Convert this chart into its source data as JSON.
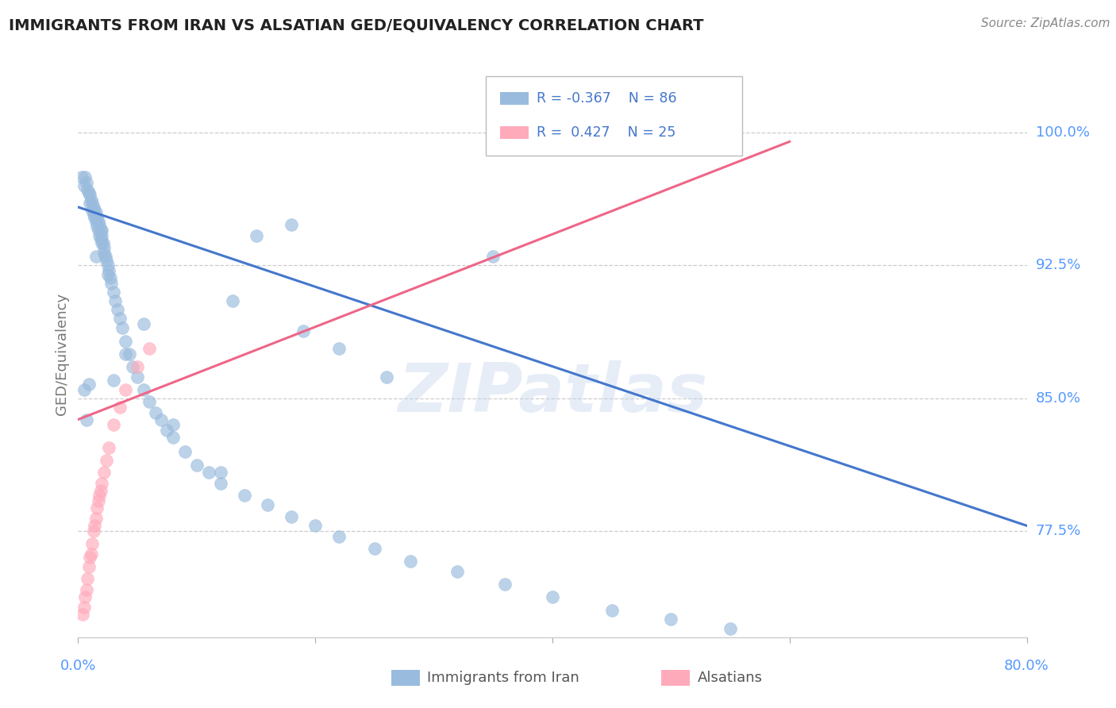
{
  "title": "IMMIGRANTS FROM IRAN VS ALSATIAN GED/EQUIVALENCY CORRELATION CHART",
  "source": "Source: ZipAtlas.com",
  "ylabel": "GED/Equivalency",
  "legend_label1": "Immigrants from Iran",
  "legend_label2": "Alsatians",
  "R1": -0.367,
  "N1": 86,
  "R2": 0.427,
  "N2": 25,
  "color_blue": "#99BBDD",
  "color_pink": "#FFAABB",
  "color_line_blue": "#4477CC",
  "color_line_pink": "#EE6688",
  "color_axis_labels": "#5599FF",
  "yticks": [
    0.775,
    0.85,
    0.925,
    1.0
  ],
  "ytick_labels": [
    "77.5%",
    "85.0%",
    "92.5%",
    "100.0%"
  ],
  "xlim": [
    0.0,
    0.8
  ],
  "ylim": [
    0.715,
    1.035
  ],
  "watermark": "ZIPatlas",
  "blue_line_x": [
    0.0,
    0.8
  ],
  "blue_line_y": [
    0.958,
    0.778
  ],
  "pink_line_x": [
    0.0,
    0.6
  ],
  "pink_line_y": [
    0.838,
    0.995
  ],
  "blue_x": [
    0.003,
    0.005,
    0.006,
    0.007,
    0.008,
    0.009,
    0.01,
    0.01,
    0.011,
    0.012,
    0.012,
    0.013,
    0.013,
    0.014,
    0.014,
    0.015,
    0.015,
    0.016,
    0.016,
    0.017,
    0.017,
    0.018,
    0.018,
    0.019,
    0.019,
    0.02,
    0.02,
    0.021,
    0.022,
    0.022,
    0.023,
    0.024,
    0.025,
    0.026,
    0.027,
    0.028,
    0.03,
    0.031,
    0.033,
    0.035,
    0.037,
    0.04,
    0.043,
    0.046,
    0.05,
    0.055,
    0.06,
    0.065,
    0.07,
    0.075,
    0.08,
    0.09,
    0.1,
    0.11,
    0.12,
    0.14,
    0.16,
    0.18,
    0.2,
    0.22,
    0.25,
    0.28,
    0.32,
    0.36,
    0.4,
    0.45,
    0.5,
    0.55,
    0.005,
    0.007,
    0.009,
    0.015,
    0.02,
    0.025,
    0.03,
    0.04,
    0.055,
    0.08,
    0.13,
    0.18,
    0.22,
    0.26,
    0.15,
    0.19,
    0.35,
    0.12
  ],
  "blue_y": [
    0.975,
    0.97,
    0.975,
    0.972,
    0.968,
    0.966,
    0.965,
    0.96,
    0.962,
    0.96,
    0.956,
    0.958,
    0.954,
    0.956,
    0.952,
    0.955,
    0.95,
    0.952,
    0.947,
    0.95,
    0.945,
    0.948,
    0.942,
    0.945,
    0.94,
    0.942,
    0.938,
    0.938,
    0.935,
    0.932,
    0.93,
    0.928,
    0.925,
    0.922,
    0.918,
    0.915,
    0.91,
    0.905,
    0.9,
    0.895,
    0.89,
    0.882,
    0.875,
    0.868,
    0.862,
    0.855,
    0.848,
    0.842,
    0.838,
    0.832,
    0.828,
    0.82,
    0.812,
    0.808,
    0.802,
    0.795,
    0.79,
    0.783,
    0.778,
    0.772,
    0.765,
    0.758,
    0.752,
    0.745,
    0.738,
    0.73,
    0.725,
    0.72,
    0.855,
    0.838,
    0.858,
    0.93,
    0.945,
    0.92,
    0.86,
    0.875,
    0.892,
    0.835,
    0.905,
    0.948,
    0.878,
    0.862,
    0.942,
    0.888,
    0.93,
    0.808
  ],
  "pink_x": [
    0.004,
    0.005,
    0.006,
    0.007,
    0.008,
    0.009,
    0.01,
    0.011,
    0.012,
    0.013,
    0.014,
    0.015,
    0.016,
    0.017,
    0.018,
    0.019,
    0.02,
    0.022,
    0.024,
    0.026,
    0.03,
    0.035,
    0.04,
    0.05,
    0.06
  ],
  "pink_y": [
    0.728,
    0.732,
    0.738,
    0.742,
    0.748,
    0.755,
    0.76,
    0.762,
    0.768,
    0.775,
    0.778,
    0.782,
    0.788,
    0.792,
    0.795,
    0.798,
    0.802,
    0.808,
    0.815,
    0.822,
    0.835,
    0.845,
    0.855,
    0.868,
    0.878
  ]
}
